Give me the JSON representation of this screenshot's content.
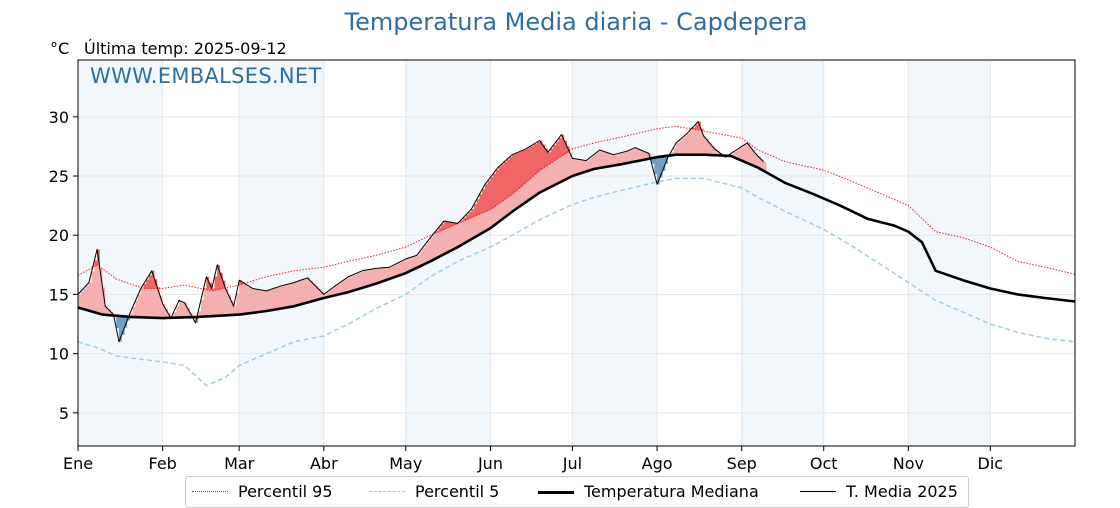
{
  "title": "Temperatura Media diaria - Capdepera",
  "unit": "°C",
  "last_temp_label": "Última temp: 2025-09-12",
  "watermark": "WWW.EMBALSES.NET",
  "legend": {
    "p95": "Percentil 95",
    "p5": "Percentil 5",
    "median": "Temperatura Mediana",
    "current": "T. Media 2025"
  },
  "colors": {
    "title": "#2e6ea6",
    "p95": "#e8242a",
    "p5": "#9fcfe0",
    "median": "#000000",
    "current": "#000000",
    "fill_above_median": "#f4b0b0",
    "fill_above_p95": "#ee6666",
    "fill_below_median": "#6e9fc5",
    "band_shade": "#e9f1f8"
  },
  "chart_data": {
    "type": "line",
    "title": "Temperatura Media diaria - Capdepera",
    "ylabel": "°C",
    "ylim": [
      2.2,
      34.8
    ],
    "yticks": [
      5,
      10,
      15,
      20,
      25,
      30
    ],
    "months": [
      "Ene",
      "Feb",
      "Mar",
      "Abr",
      "May",
      "Jun",
      "Jul",
      "Ago",
      "Sep",
      "Oct",
      "Nov",
      "Dic"
    ],
    "month_start_day": [
      1,
      32,
      60,
      91,
      121,
      152,
      182,
      213,
      244,
      274,
      305,
      335
    ],
    "x_range_days": [
      1,
      366
    ],
    "grid": true,
    "legend_position": "bottom",
    "series": [
      {
        "name": "Percentil 95",
        "style": "dotted",
        "points": [
          [
            1,
            16.6
          ],
          [
            8,
            17.5
          ],
          [
            15,
            16.3
          ],
          [
            25,
            15.5
          ],
          [
            32,
            15.5
          ],
          [
            40,
            15.8
          ],
          [
            50,
            15.3
          ],
          [
            60,
            15.8
          ],
          [
            70,
            16.5
          ],
          [
            80,
            17.0
          ],
          [
            91,
            17.3
          ],
          [
            100,
            17.8
          ],
          [
            110,
            18.3
          ],
          [
            121,
            19.0
          ],
          [
            130,
            20.0
          ],
          [
            140,
            21.0
          ],
          [
            152,
            22.2
          ],
          [
            160,
            23.5
          ],
          [
            170,
            25.5
          ],
          [
            182,
            27.3
          ],
          [
            190,
            27.8
          ],
          [
            200,
            28.3
          ],
          [
            213,
            29.0
          ],
          [
            220,
            29.2
          ],
          [
            230,
            28.8
          ],
          [
            244,
            28.2
          ],
          [
            250,
            27.2
          ],
          [
            260,
            26.2
          ],
          [
            274,
            25.5
          ],
          [
            285,
            24.5
          ],
          [
            295,
            23.5
          ],
          [
            305,
            22.5
          ],
          [
            315,
            20.3
          ],
          [
            325,
            19.8
          ],
          [
            335,
            19.0
          ],
          [
            345,
            17.8
          ],
          [
            355,
            17.3
          ],
          [
            366,
            16.7
          ]
        ]
      },
      {
        "name": "Percentil 5",
        "style": "dashed",
        "points": [
          [
            1,
            11.0
          ],
          [
            8,
            10.5
          ],
          [
            15,
            9.8
          ],
          [
            25,
            9.5
          ],
          [
            32,
            9.3
          ],
          [
            40,
            9.0
          ],
          [
            48,
            7.3
          ],
          [
            55,
            8.0
          ],
          [
            60,
            9.0
          ],
          [
            70,
            10.0
          ],
          [
            80,
            11.0
          ],
          [
            91,
            11.5
          ],
          [
            100,
            12.5
          ],
          [
            110,
            13.8
          ],
          [
            121,
            15.0
          ],
          [
            130,
            16.5
          ],
          [
            140,
            17.8
          ],
          [
            152,
            19.0
          ],
          [
            160,
            20.0
          ],
          [
            170,
            21.3
          ],
          [
            182,
            22.6
          ],
          [
            190,
            23.2
          ],
          [
            200,
            23.8
          ],
          [
            213,
            24.5
          ],
          [
            220,
            24.8
          ],
          [
            230,
            24.8
          ],
          [
            244,
            24.0
          ],
          [
            250,
            23.2
          ],
          [
            260,
            22.0
          ],
          [
            274,
            20.5
          ],
          [
            285,
            19.0
          ],
          [
            295,
            17.5
          ],
          [
            305,
            16.0
          ],
          [
            315,
            14.5
          ],
          [
            325,
            13.5
          ],
          [
            335,
            12.5
          ],
          [
            345,
            11.8
          ],
          [
            355,
            11.3
          ],
          [
            366,
            11.0
          ]
        ]
      },
      {
        "name": "Temperatura Mediana",
        "style": "solid-bold",
        "points": [
          [
            1,
            13.9
          ],
          [
            10,
            13.3
          ],
          [
            20,
            13.1
          ],
          [
            32,
            13.0
          ],
          [
            45,
            13.1
          ],
          [
            60,
            13.3
          ],
          [
            70,
            13.6
          ],
          [
            80,
            14.0
          ],
          [
            91,
            14.7
          ],
          [
            100,
            15.2
          ],
          [
            110,
            15.9
          ],
          [
            121,
            16.8
          ],
          [
            130,
            17.8
          ],
          [
            140,
            19.0
          ],
          [
            152,
            20.6
          ],
          [
            160,
            22.0
          ],
          [
            170,
            23.6
          ],
          [
            182,
            25.0
          ],
          [
            190,
            25.6
          ],
          [
            200,
            26.0
          ],
          [
            213,
            26.6
          ],
          [
            220,
            26.8
          ],
          [
            230,
            26.8
          ],
          [
            240,
            26.7
          ],
          [
            250,
            25.7
          ],
          [
            260,
            24.4
          ],
          [
            270,
            23.5
          ],
          [
            280,
            22.5
          ],
          [
            290,
            21.4
          ],
          [
            300,
            20.8
          ],
          [
            305,
            20.3
          ],
          [
            310,
            19.4
          ],
          [
            315,
            17.0
          ],
          [
            325,
            16.2
          ],
          [
            335,
            15.5
          ],
          [
            345,
            15.0
          ],
          [
            355,
            14.7
          ],
          [
            366,
            14.4
          ]
        ]
      },
      {
        "name": "T. Media 2025",
        "style": "solid-thin",
        "points": [
          [
            1,
            15.0
          ],
          [
            5,
            16.0
          ],
          [
            8,
            18.8
          ],
          [
            11,
            14.0
          ],
          [
            14,
            13.3
          ],
          [
            16,
            11.0
          ],
          [
            20,
            13.4
          ],
          [
            24,
            15.5
          ],
          [
            28,
            17.0
          ],
          [
            32,
            14.2
          ],
          [
            35,
            13.0
          ],
          [
            38,
            14.5
          ],
          [
            40,
            14.3
          ],
          [
            44,
            12.6
          ],
          [
            48,
            16.5
          ],
          [
            50,
            15.5
          ],
          [
            52,
            17.5
          ],
          [
            55,
            15.5
          ],
          [
            58,
            14.0
          ],
          [
            60,
            16.2
          ],
          [
            65,
            15.5
          ],
          [
            70,
            15.3
          ],
          [
            75,
            15.7
          ],
          [
            80,
            16.0
          ],
          [
            85,
            16.4
          ],
          [
            91,
            15.0
          ],
          [
            95,
            15.7
          ],
          [
            100,
            16.5
          ],
          [
            105,
            17.0
          ],
          [
            110,
            17.2
          ],
          [
            115,
            17.3
          ],
          [
            121,
            18.0
          ],
          [
            125,
            18.3
          ],
          [
            130,
            19.8
          ],
          [
            135,
            21.2
          ],
          [
            140,
            21.0
          ],
          [
            145,
            22.2
          ],
          [
            150,
            24.3
          ],
          [
            155,
            25.8
          ],
          [
            160,
            26.8
          ],
          [
            165,
            27.3
          ],
          [
            170,
            28.0
          ],
          [
            173,
            27.0
          ],
          [
            178,
            28.5
          ],
          [
            182,
            26.5
          ],
          [
            187,
            26.3
          ],
          [
            192,
            27.2
          ],
          [
            197,
            26.8
          ],
          [
            202,
            27.1
          ],
          [
            205,
            27.4
          ],
          [
            210,
            26.9
          ],
          [
            213,
            24.3
          ],
          [
            217,
            26.6
          ],
          [
            220,
            27.8
          ],
          [
            224,
            28.6
          ],
          [
            228,
            29.6
          ],
          [
            230,
            28.4
          ],
          [
            234,
            27.3
          ],
          [
            238,
            26.6
          ],
          [
            242,
            27.2
          ],
          [
            246,
            27.8
          ],
          [
            249,
            26.9
          ],
          [
            252,
            26.2
          ]
        ]
      }
    ]
  }
}
